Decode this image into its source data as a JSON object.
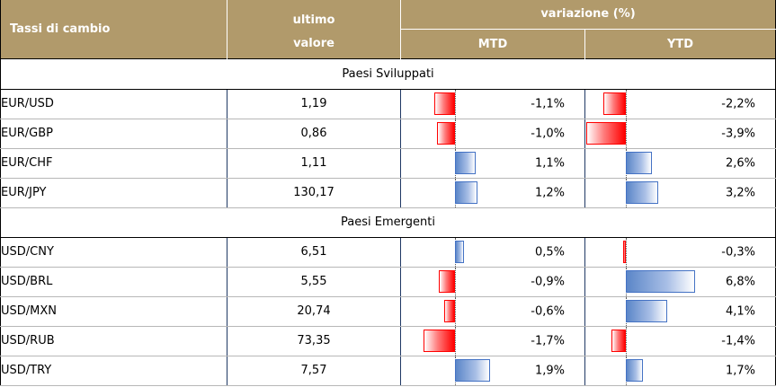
{
  "header": {
    "title": "Tassi di cambio",
    "ultimo_line1": "ultimo",
    "ultimo_line2": "valore",
    "variazione": "variazione (%)",
    "mtd": "MTD",
    "ytd": "YTD"
  },
  "colors": {
    "header_bg": "#b19a6b",
    "negative_bar": "#ff0000",
    "positive_bar": "#4472c4"
  },
  "sections": [
    {
      "title": "Paesi Sviluppati",
      "rows": [
        {
          "name": "EUR/USD",
          "value": "1,19",
          "mtd_label": "-1,1%",
          "mtd": -1.1,
          "ytd_label": "-2,2%",
          "ytd": -2.2
        },
        {
          "name": "EUR/GBP",
          "value": "0,86",
          "mtd_label": "-1,0%",
          "mtd": -1.0,
          "ytd_label": "-3,9%",
          "ytd": -3.9
        },
        {
          "name": "EUR/CHF",
          "value": "1,11",
          "mtd_label": "1,1%",
          "mtd": 1.1,
          "ytd_label": "2,6%",
          "ytd": 2.6
        },
        {
          "name": "EUR/JPY",
          "value": "130,17",
          "mtd_label": "1,2%",
          "mtd": 1.2,
          "ytd_label": "3,2%",
          "ytd": 3.2
        }
      ]
    },
    {
      "title": "Paesi Emergenti",
      "rows": [
        {
          "name": "USD/CNY",
          "value": "6,51",
          "mtd_label": "0,5%",
          "mtd": 0.5,
          "ytd_label": "-0,3%",
          "ytd": -0.3
        },
        {
          "name": "USD/BRL",
          "value": "5,55",
          "mtd_label": "-0,9%",
          "mtd": -0.9,
          "ytd_label": "6,8%",
          "ytd": 6.8
        },
        {
          "name": "USD/MXN",
          "value": "20,74",
          "mtd_label": "-0,6%",
          "mtd": -0.6,
          "ytd_label": "4,1%",
          "ytd": 4.1
        },
        {
          "name": "USD/RUB",
          "value": "73,35",
          "mtd_label": "-1,7%",
          "mtd": -1.7,
          "ytd_label": "-1,4%",
          "ytd": -1.4
        },
        {
          "name": "USD/TRY",
          "value": "7,57",
          "mtd_label": "1,9%",
          "mtd": 1.9,
          "ytd_label": "1,7%",
          "ytd": 1.7
        }
      ]
    }
  ]
}
